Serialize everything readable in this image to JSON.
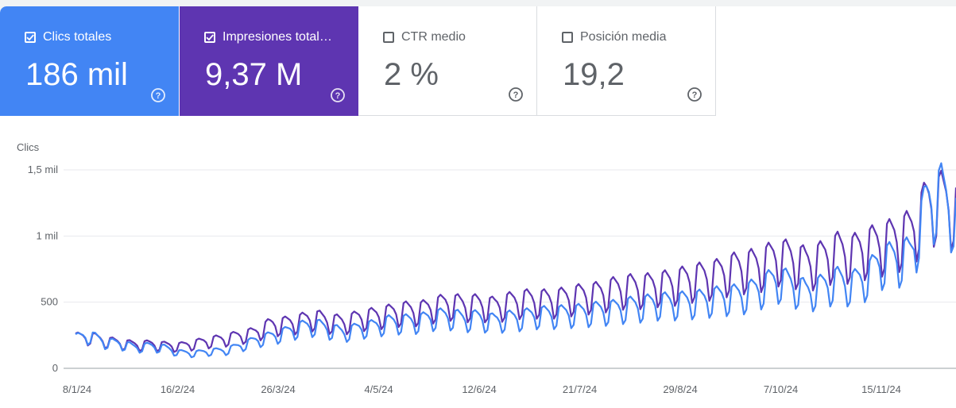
{
  "metrics": [
    {
      "label": "Clics totales",
      "value": "186 mil",
      "checked": true,
      "color": "#4285f4"
    },
    {
      "label": "Impresiones total…",
      "value": "9,37 M",
      "checked": true,
      "color": "#5e35b1"
    },
    {
      "label": "CTR medio",
      "value": "2 %",
      "checked": false,
      "color": "#ffffff"
    },
    {
      "label": "Posición media",
      "value": "19,2",
      "checked": false,
      "color": "#ffffff"
    }
  ],
  "icons": {
    "checkbox_checked": "checkbox-checked-icon",
    "checkbox_empty": "checkbox-empty-icon",
    "help": "help-circle-icon"
  },
  "chart_data": {
    "type": "line",
    "ylabel": "Clics",
    "y_ticks": [
      "0",
      "500",
      "1 mil",
      "1,5 mil"
    ],
    "y_tick_values": [
      0,
      500,
      1000,
      1500
    ],
    "ylim": [
      0,
      1500
    ],
    "x_ticks": [
      "8/1/24",
      "16/2/24",
      "26/3/24",
      "4/5/24",
      "12/6/24",
      "21/7/24",
      "29/8/24",
      "7/10/24",
      "15/11/24"
    ],
    "x_start": "2024-01-08",
    "x_end": "2024-12-31",
    "grid": true,
    "series": [
      {
        "key": "clicks",
        "color": "#4285f4",
        "values": [
          230,
          250,
          200,
          190,
          160,
          170,
          155,
          120,
          115,
          130,
          135,
          170,
          210,
          240,
          270,
          310,
          330,
          300,
          270,
          305,
          320,
          350,
          355,
          360,
          390,
          400,
          375,
          385,
          360,
          380,
          390,
          410,
          410,
          420,
          425,
          440,
          450,
          470,
          480,
          500,
          500,
          510,
          520,
          540,
          550,
          570,
          620,
          680,
          640,
          580,
          620,
          670,
          640,
          700,
          820,
          840,
          870,
          1250,
          1350,
          1150
        ]
      },
      {
        "key": "impressions",
        "color": "#5e35b1",
        "values": [
          235,
          240,
          210,
          195,
          180,
          185,
          175,
          170,
          190,
          210,
          225,
          250,
          270,
          330,
          340,
          360,
          390,
          360,
          350,
          385,
          400,
          420,
          440,
          440,
          470,
          500,
          480,
          490,
          470,
          500,
          520,
          520,
          520,
          540,
          560,
          570,
          600,
          620,
          620,
          640,
          650,
          680,
          700,
          720,
          760,
          780,
          800,
          860,
          840,
          800,
          840,
          900,
          880,
          930,
          960,
          1000,
          1050,
          1250,
          1300,
          1220
        ]
      }
    ]
  }
}
